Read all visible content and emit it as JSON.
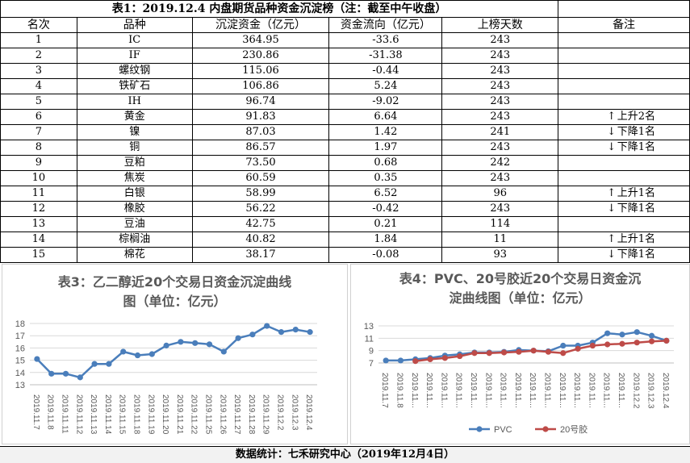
{
  "table": {
    "title": "表1：2019.12.4 内盘期货品种资金沉淀榜（注：截至中午收盘）",
    "headers": [
      "名次",
      "品种",
      "沉淀资金（亿元）",
      "资金流向（亿元）",
      "上榜天数",
      "备注"
    ],
    "rows": [
      {
        "rank": "1",
        "name": "IC",
        "funds": "364.95",
        "flow": "-33.6",
        "days": "243",
        "arrow": "",
        "note": ""
      },
      {
        "rank": "2",
        "name": "IF",
        "funds": "230.86",
        "flow": "-31.38",
        "days": "243",
        "arrow": "",
        "note": ""
      },
      {
        "rank": "3",
        "name": "螺纹钢",
        "funds": "115.06",
        "flow": "-0.44",
        "days": "243",
        "arrow": "",
        "note": ""
      },
      {
        "rank": "4",
        "name": "铁矿石",
        "funds": "106.86",
        "flow": "5.24",
        "days": "243",
        "arrow": "",
        "note": ""
      },
      {
        "rank": "5",
        "name": "IH",
        "funds": "96.74",
        "flow": "-9.02",
        "days": "243",
        "arrow": "",
        "note": ""
      },
      {
        "rank": "6",
        "name": "黄金",
        "funds": "91.83",
        "flow": "6.64",
        "days": "243",
        "arrow": "↑",
        "note": "上升2名"
      },
      {
        "rank": "7",
        "name": "镍",
        "funds": "87.03",
        "flow": "1.42",
        "days": "241",
        "arrow": "↓",
        "note": "下降1名"
      },
      {
        "rank": "8",
        "name": "铜",
        "funds": "86.57",
        "flow": "1.97",
        "days": "243",
        "arrow": "↓",
        "note": "下降1名"
      },
      {
        "rank": "9",
        "name": "豆粕",
        "funds": "73.50",
        "flow": "0.68",
        "days": "242",
        "arrow": "",
        "note": ""
      },
      {
        "rank": "10",
        "name": "焦炭",
        "funds": "60.59",
        "flow": "0.35",
        "days": "243",
        "arrow": "",
        "note": ""
      },
      {
        "rank": "11",
        "name": "白银",
        "funds": "58.99",
        "flow": "6.52",
        "days": "96",
        "arrow": "↑",
        "note": "上升1名"
      },
      {
        "rank": "12",
        "name": "橡胶",
        "funds": "56.22",
        "flow": "-0.42",
        "days": "243",
        "arrow": "↓",
        "note": "下降1名"
      },
      {
        "rank": "13",
        "name": "豆油",
        "funds": "42.75",
        "flow": "0.21",
        "days": "114",
        "arrow": "",
        "note": ""
      },
      {
        "rank": "14",
        "name": "棕榈油",
        "funds": "40.82",
        "flow": "1.84",
        "days": "11",
        "arrow": "↑",
        "note": "上升1名"
      },
      {
        "rank": "15",
        "name": "棉花",
        "funds": "38.17",
        "flow": "-0.08",
        "days": "93",
        "arrow": "↓",
        "note": "下降1名"
      }
    ]
  },
  "chart_data": [
    {
      "type": "line",
      "title_lines": [
        "表3：乙二醇近20个交易日资金沉淀曲线",
        "图（单位：亿元）"
      ],
      "x": [
        "2019.11.7",
        "2019.11.8",
        "2019.11.11",
        "2019.11.12",
        "2019.11.13",
        "2019.11.14",
        "2019.11.15",
        "2019.11.18",
        "2019.11.19",
        "2019.11.20",
        "2019.11.21",
        "2019.11.22",
        "2019.11.25",
        "2019.11.26",
        "2019.11.27",
        "2019.11.28",
        "2019.11.29",
        "2019.12.2",
        "2019.12.3",
        "2019.12.4"
      ],
      "series": [
        {
          "name": "",
          "color": "#4a7ebb",
          "values": [
            15.1,
            13.9,
            13.9,
            13.6,
            14.7,
            14.7,
            15.7,
            15.4,
            15.5,
            16.2,
            16.5,
            16.4,
            16.3,
            15.7,
            16.8,
            17.1,
            17.8,
            17.3,
            17.5,
            17.3
          ]
        }
      ],
      "ylim": [
        13,
        18
      ],
      "yticks": [
        "13",
        "14",
        "15",
        "16",
        "17",
        "18"
      ],
      "grid": true,
      "legend": "none"
    },
    {
      "type": "line",
      "title_lines": [
        "表4：PVC、20号胶近20个交易日资金沉",
        "淀曲线图（单位：亿元）"
      ],
      "x": [
        "2019.11.7",
        "2019.11.8",
        "2019.11.11",
        "2019.11.12",
        "2019.11.13",
        "2019.11.14",
        "2019.11.15",
        "2019.11.18",
        "2019.11.19",
        "2019.11.20",
        "2019.11.21",
        "2019.11.22",
        "2019.11.25",
        "2019.11.26",
        "2019.11.27",
        "2019.11.28",
        "2019.11.29",
        "2019.12.2",
        "2019.12.3",
        "2019.12.4"
      ],
      "xticklabels": [
        "2019.11.7",
        "2019.11.8",
        "2019.11...",
        "2019.11...",
        "2019.11...",
        "2019.11...",
        "2019.11...",
        "2019.11...",
        "2019.11...",
        "2019.11...",
        "2019.11...",
        "2019.11...",
        "2019.11...",
        "2019.11...",
        "2019.11...",
        "2019.11...",
        "2019.11...",
        "2019.12.2",
        "2019.12.3",
        "2019.12.4"
      ],
      "series": [
        {
          "name": "PVC",
          "color": "#4a7ebb",
          "values": [
            7.4,
            7.4,
            7.6,
            7.8,
            8.2,
            8.4,
            8.7,
            8.7,
            8.8,
            9.1,
            9.0,
            8.9,
            9.8,
            9.8,
            10.3,
            11.8,
            11.6,
            12.0,
            11.4,
            10.6
          ]
        },
        {
          "name": "20号胶",
          "color": "#be4b48",
          "values": [
            null,
            null,
            7.3,
            7.6,
            7.8,
            8.1,
            8.6,
            8.6,
            8.7,
            8.8,
            9.0,
            8.8,
            8.6,
            9.3,
            9.8,
            10.0,
            10.1,
            10.3,
            10.5,
            10.6
          ]
        }
      ],
      "ylim": [
        7,
        13
      ],
      "yticks": [
        "7",
        "9",
        "11",
        "13"
      ],
      "grid": true,
      "legend": "bottom"
    }
  ],
  "footer": "数据统计：七禾研究中心（2019年12月4日）"
}
